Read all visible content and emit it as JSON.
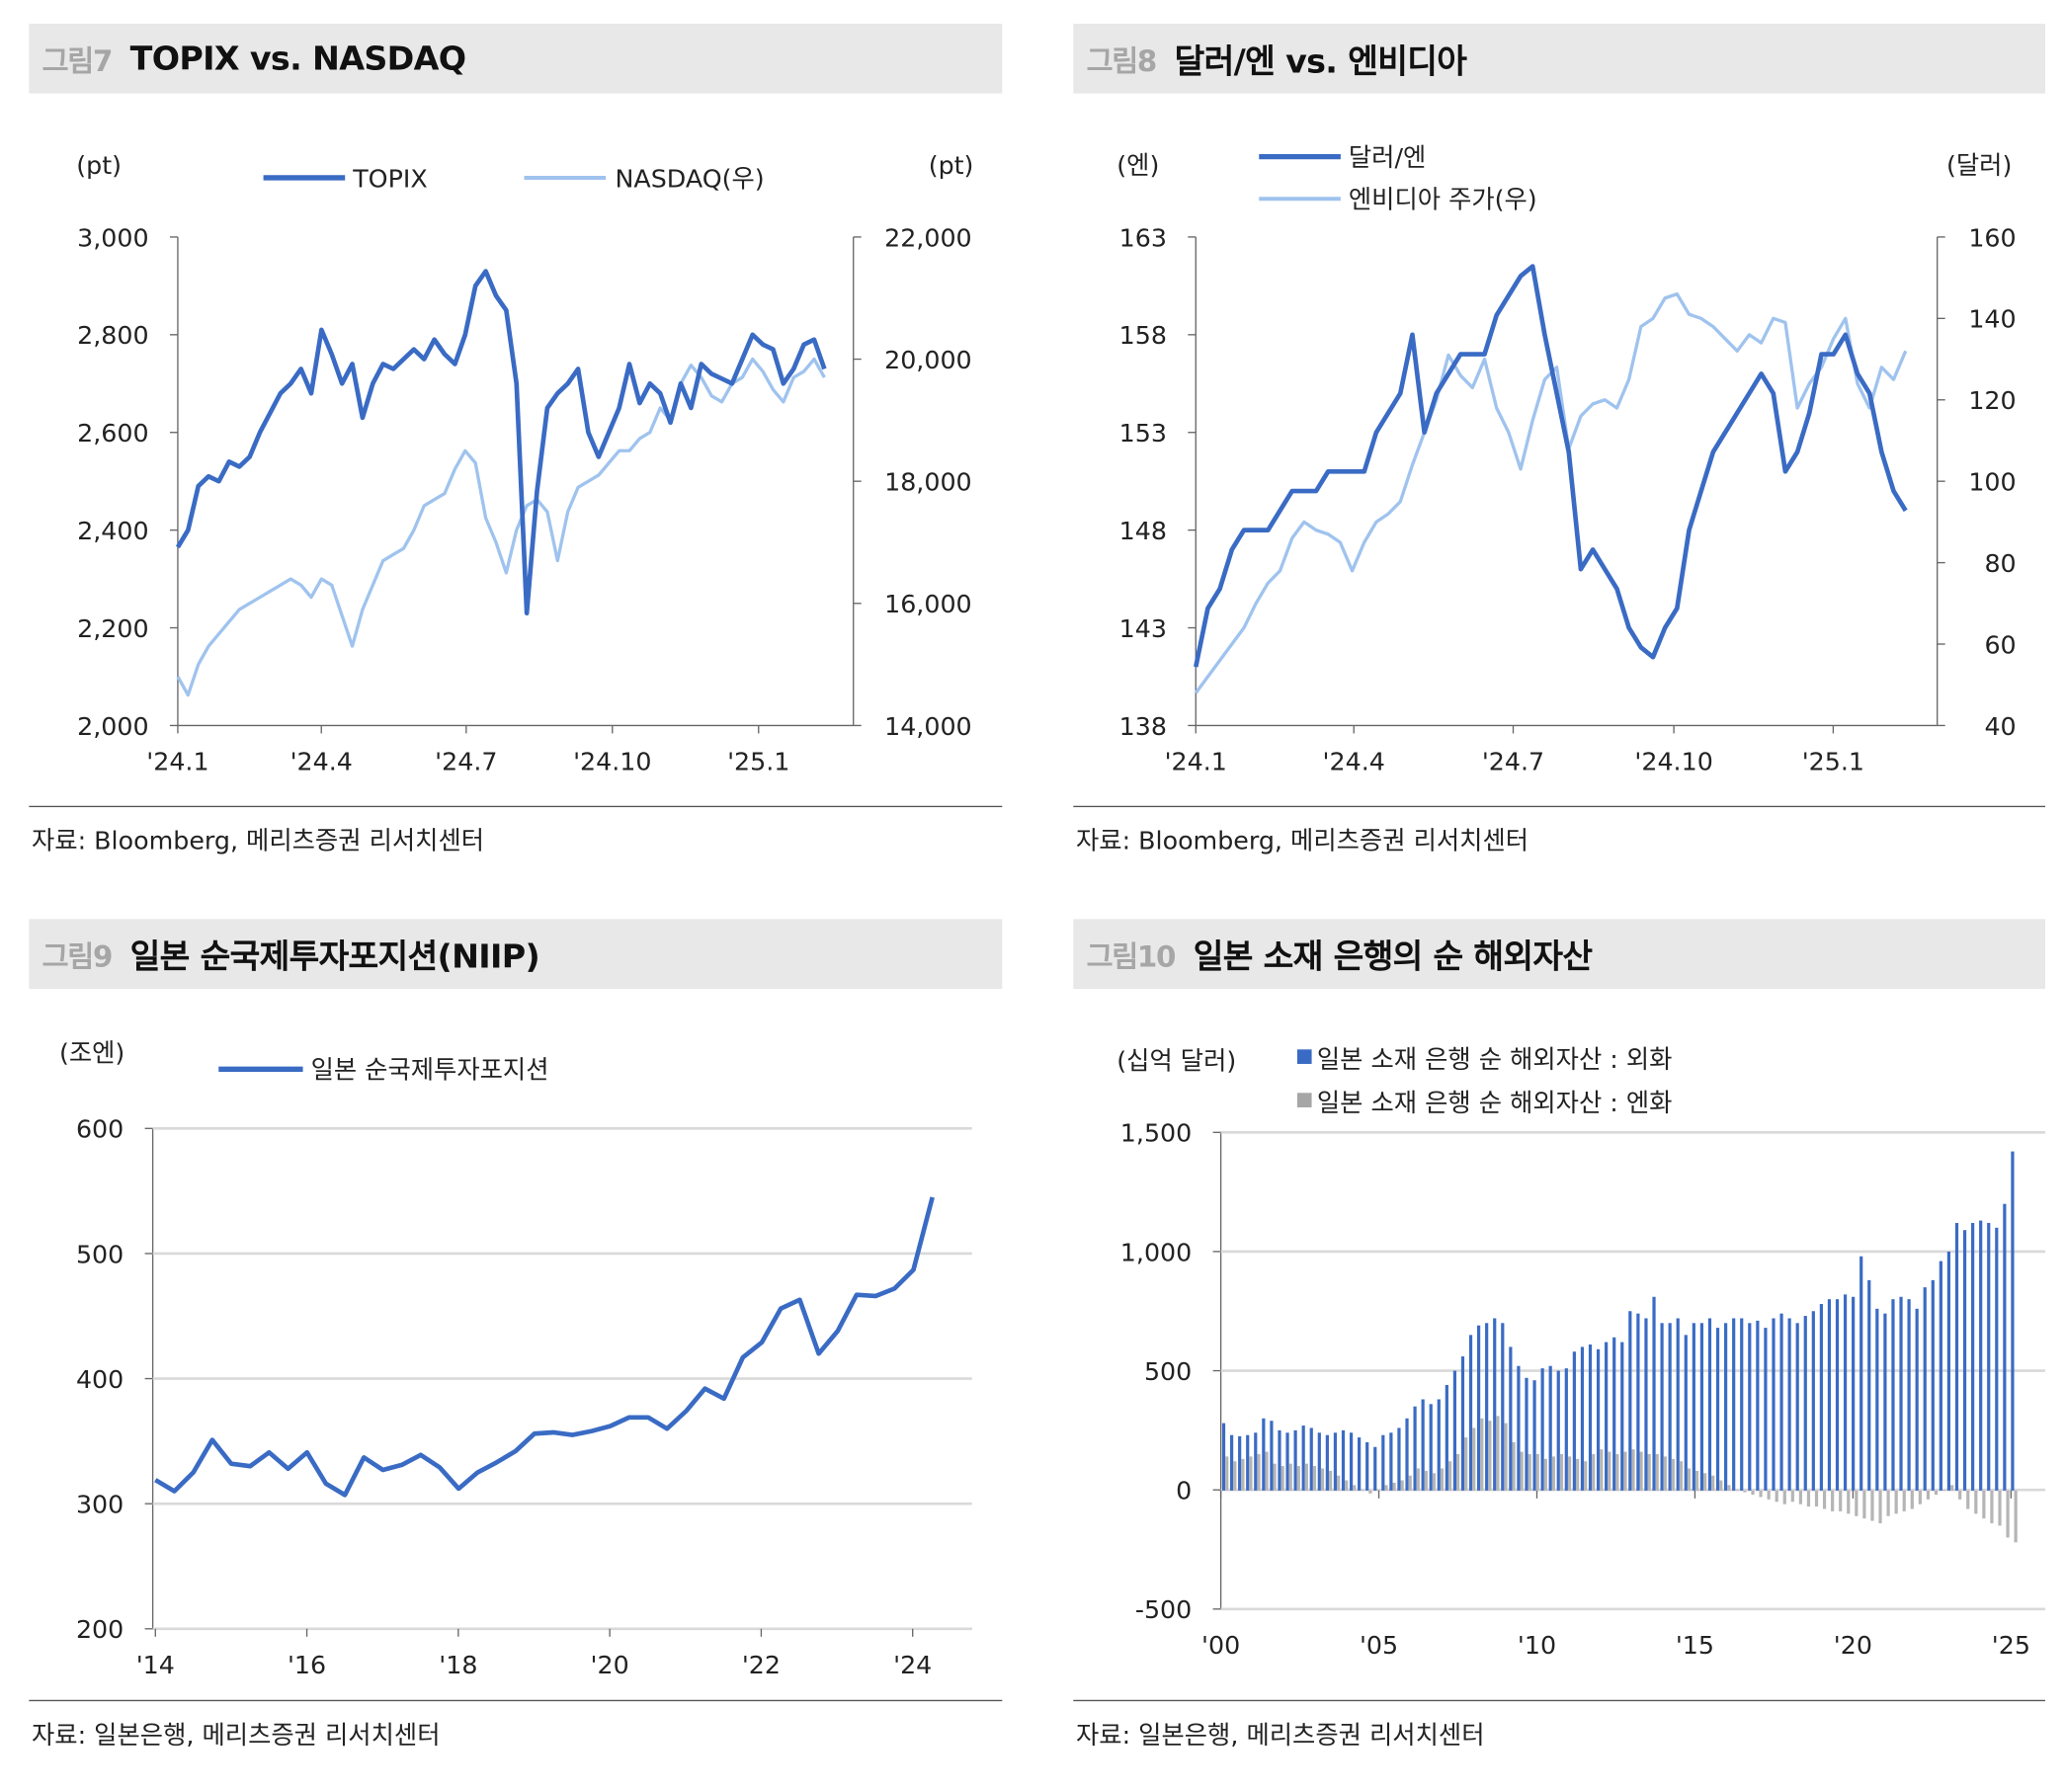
{
  "figures": [
    {
      "num": "그림7",
      "title": "TOPIX vs. NASDAQ",
      "source": "자료: Bloomberg, 메리츠증권 리서치센터"
    },
    {
      "num": "그림8",
      "title": "달러/엔 vs. 엔비디아",
      "source": "자료: Bloomberg, 메리츠증권 리서치센터"
    },
    {
      "num": "그림9",
      "title": "일본 순국제투자포지션(NIIP)",
      "source": "자료: 일본은행, 메리츠증권 리서치센터"
    },
    {
      "num": "그림10",
      "title": "일본 소재 은행의 순 해외자산",
      "source": "자료: 일본은행, 메리츠증권 리서치센터"
    }
  ],
  "colors": {
    "dark": "#3a6bc4",
    "light": "#9fc3ee",
    "gray": "#b5b5b5",
    "grid": "#d9d9d9"
  },
  "chart_data": [
    {
      "type": "line",
      "title": "TOPIX vs. NASDAQ",
      "ylabel": "(pt)",
      "y2label": "(pt)",
      "xticks": [
        "'24.1",
        "'24.4",
        "'24.7",
        "'24.10",
        "'25.1"
      ],
      "yticks": [
        "3,000",
        "2,800",
        "2,600",
        "2,400",
        "2,200",
        "2,000"
      ],
      "ylim": [
        2000,
        3000
      ],
      "y2ticks": [
        "22,000",
        "20,000",
        "18,000",
        "16,000",
        "14,000"
      ],
      "y2lim": [
        14000,
        22000
      ],
      "series": [
        {
          "name": "TOPIX",
          "axis": "left",
          "values": [
            2365,
            2400,
            2490,
            2510,
            2500,
            2540,
            2530,
            2550,
            2600,
            2640,
            2680,
            2700,
            2730,
            2680,
            2810,
            2760,
            2700,
            2740,
            2630,
            2700,
            2740,
            2730,
            2750,
            2770,
            2750,
            2790,
            2760,
            2740,
            2800,
            2900,
            2930,
            2880,
            2850,
            2700,
            2230,
            2480,
            2650,
            2680,
            2700,
            2730,
            2600,
            2550,
            2600,
            2650,
            2740,
            2660,
            2700,
            2680,
            2620,
            2700,
            2650,
            2740,
            2720,
            2710,
            2700,
            2750,
            2800,
            2780,
            2770,
            2700,
            2730,
            2780,
            2790,
            2730
          ]
        },
        {
          "name": "NASDAQ(우)",
          "axis": "right",
          "values": [
            14800,
            14500,
            15000,
            15300,
            15500,
            15700,
            15900,
            16000,
            16100,
            16200,
            16300,
            16400,
            16300,
            16100,
            16400,
            16300,
            15800,
            15300,
            15900,
            16300,
            16700,
            16800,
            16900,
            17200,
            17600,
            17700,
            17800,
            18200,
            18500,
            18300,
            17400,
            17000,
            16500,
            17200,
            17600,
            17700,
            17500,
            16700,
            17500,
            17900,
            18000,
            18100,
            18300,
            18500,
            18500,
            18700,
            18800,
            19200,
            19000,
            19600,
            19900,
            19700,
            19400,
            19300,
            19600,
            19700,
            20000,
            19800,
            19500,
            19300,
            19700,
            19800,
            20000,
            19700
          ]
        }
      ]
    },
    {
      "type": "line",
      "title": "달러/엔 vs. 엔비디아",
      "ylabel": "(엔)",
      "y2label": "(달러)",
      "xticks": [
        "'24.1",
        "'24.4",
        "'24.7",
        "'24.10",
        "'25.1"
      ],
      "yticks": [
        "163",
        "158",
        "153",
        "148",
        "143",
        "138"
      ],
      "ylim": [
        138,
        163
      ],
      "y2ticks": [
        "160",
        "140",
        "120",
        "100",
        "80",
        "60",
        "40"
      ],
      "y2lim": [
        40,
        160
      ],
      "series": [
        {
          "name": "달러/엔",
          "axis": "left",
          "values": [
            141,
            144,
            145,
            147,
            148,
            148,
            148,
            149,
            150,
            150,
            150,
            151,
            151,
            151,
            151,
            153,
            154,
            155,
            158,
            153,
            155,
            156,
            157,
            157,
            157,
            159,
            160,
            161,
            161.5,
            158,
            155,
            152,
            146,
            147,
            146,
            145,
            143,
            142,
            141.5,
            143,
            144,
            148,
            150,
            152,
            153,
            154,
            155,
            156,
            155,
            151,
            152,
            154,
            157,
            157,
            158,
            156,
            155,
            152,
            150,
            149
          ]
        },
        {
          "name": "엔비디아 주가(우)",
          "axis": "right",
          "values": [
            48,
            52,
            56,
            60,
            64,
            70,
            75,
            78,
            86,
            90,
            88,
            87,
            85,
            78,
            85,
            90,
            92,
            95,
            104,
            112,
            120,
            131,
            126,
            123,
            130,
            118,
            112,
            103,
            115,
            125,
            128,
            108,
            116,
            119,
            120,
            118,
            125,
            138,
            140,
            145,
            146,
            141,
            140,
            138,
            135,
            132,
            136,
            134,
            140,
            139,
            118,
            124,
            128,
            135,
            140,
            124,
            118,
            128,
            125,
            132
          ]
        }
      ]
    },
    {
      "type": "line",
      "title": "일본 순국제투자포지션(NIIP)",
      "ylabel": "(조엔)",
      "xticks": [
        "'14",
        "'16",
        "'18",
        "'20",
        "'22",
        "'24"
      ],
      "yticks": [
        "600",
        "500",
        "400",
        "300",
        "200"
      ],
      "ylim": [
        200,
        600
      ],
      "series": [
        {
          "name": "일본 순국제투자포지션",
          "values": [
            319,
            310,
            325,
            351,
            332,
            330,
            341,
            328,
            341,
            316,
            307,
            337,
            327,
            331,
            339,
            329,
            312,
            325,
            333,
            342,
            356,
            357,
            355,
            358,
            362,
            369,
            369,
            360,
            374,
            392,
            384,
            417,
            429,
            456,
            463,
            420,
            438,
            467,
            466,
            472,
            487,
            545
          ]
        }
      ]
    },
    {
      "type": "bar",
      "title": "일본 소재 은행의 순 해외자산",
      "ylabel": "(십억 달러)",
      "xticks": [
        "'00",
        "'05",
        "'10",
        "'15",
        "'20",
        "'25"
      ],
      "yticks": [
        "1,500",
        "1,000",
        "500",
        "0",
        "-500"
      ],
      "ylim": [
        -500,
        1500
      ],
      "series": [
        {
          "name": "일본 소재 은행 순 해외자산 : 외화",
          "values": [
            280,
            230,
            225,
            230,
            240,
            300,
            290,
            250,
            240,
            250,
            270,
            260,
            240,
            230,
            240,
            250,
            240,
            220,
            200,
            180,
            230,
            240,
            260,
            300,
            350,
            380,
            360,
            380,
            440,
            500,
            560,
            650,
            690,
            700,
            720,
            700,
            600,
            520,
            470,
            460,
            510,
            520,
            500,
            510,
            580,
            600,
            610,
            590,
            620,
            640,
            620,
            750,
            740,
            720,
            810,
            700,
            700,
            720,
            650,
            700,
            700,
            720,
            680,
            700,
            720,
            720,
            700,
            710,
            680,
            720,
            740,
            720,
            700,
            730,
            750,
            780,
            800,
            800,
            820,
            810,
            980,
            880,
            760,
            740,
            800,
            810,
            800,
            760,
            850,
            880,
            960,
            1000,
            1120,
            1090,
            1120,
            1130,
            1120,
            1100,
            1200,
            1420
          ]
        },
        {
          "name": "일본 소재 은행 순 해외자산 : 엔화",
          "values": [
            140,
            120,
            130,
            140,
            150,
            160,
            110,
            100,
            110,
            100,
            110,
            100,
            90,
            80,
            60,
            40,
            20,
            0,
            -15,
            0,
            20,
            30,
            40,
            60,
            90,
            80,
            70,
            90,
            120,
            150,
            220,
            260,
            300,
            290,
            310,
            280,
            200,
            160,
            150,
            150,
            130,
            140,
            150,
            140,
            130,
            120,
            150,
            170,
            160,
            150,
            160,
            170,
            160,
            150,
            150,
            140,
            130,
            120,
            90,
            80,
            70,
            60,
            40,
            20,
            0,
            -10,
            -20,
            -30,
            -40,
            -50,
            -60,
            -50,
            -60,
            -70,
            -70,
            -80,
            -90,
            -90,
            -100,
            -110,
            -120,
            -130,
            -140,
            -110,
            -100,
            -90,
            -80,
            -60,
            -40,
            -20,
            0,
            20,
            -40,
            -80,
            -100,
            -120,
            -140,
            -150,
            -200,
            -220
          ]
        }
      ]
    }
  ]
}
